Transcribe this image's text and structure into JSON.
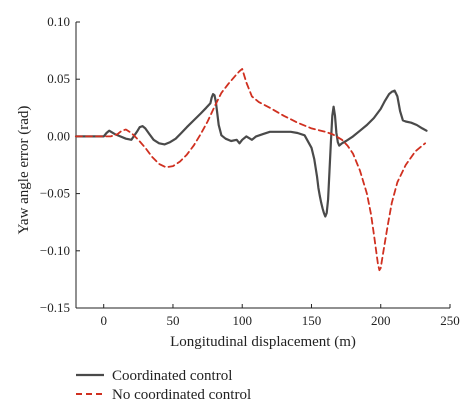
{
  "chart_data": {
    "type": "line",
    "title": "",
    "xlabel": "Longitudinal displacement (m)",
    "ylabel": "Yaw angle error (rad)",
    "xlim": [
      -20,
      250
    ],
    "ylim": [
      -0.15,
      0.1
    ],
    "xticks": [
      0,
      50,
      100,
      150,
      200,
      250
    ],
    "xtick_labels": [
      "0",
      "50",
      "100",
      "150",
      "200",
      "250"
    ],
    "yticks": [
      0.1,
      0.05,
      0.0,
      -0.05,
      -0.1,
      -0.15
    ],
    "ytick_labels": [
      "0.10",
      "0.05",
      "0.00",
      "−0.05",
      "−0.10",
      "−0.15"
    ],
    "grid": false,
    "legend_position": "bottom-left, below plot",
    "series": [
      {
        "name": "Coordinated control",
        "color": "#4a4a4a",
        "dash": "solid",
        "x": [
          -20,
          0,
          2,
          4,
          8,
          12,
          16,
          20,
          24,
          26,
          28,
          30,
          33,
          36,
          40,
          44,
          48,
          52,
          56,
          60,
          65,
          70,
          74,
          77,
          78,
          79,
          80,
          81,
          82,
          83,
          85,
          88,
          92,
          96,
          98,
          100,
          103,
          107,
          110,
          115,
          120,
          125,
          130,
          135,
          140,
          145,
          150,
          152,
          154,
          155,
          156,
          157,
          158,
          159,
          160,
          161,
          162,
          163,
          164,
          165,
          166,
          167,
          168,
          169,
          170,
          172,
          175,
          180,
          185,
          190,
          195,
          200,
          203,
          206,
          208,
          210,
          212,
          214,
          216,
          218,
          222,
          226,
          230,
          233
        ],
        "y": [
          0.0,
          0.0,
          0.003,
          0.005,
          0.002,
          0.0,
          -0.002,
          -0.003,
          0.004,
          0.008,
          0.009,
          0.007,
          0.002,
          -0.003,
          -0.006,
          -0.007,
          -0.005,
          -0.002,
          0.003,
          0.008,
          0.014,
          0.02,
          0.025,
          0.029,
          0.034,
          0.037,
          0.036,
          0.03,
          0.02,
          0.01,
          0.001,
          -0.002,
          -0.004,
          -0.003,
          -0.006,
          -0.003,
          0.0,
          -0.003,
          0.0,
          0.002,
          0.004,
          0.004,
          0.004,
          0.004,
          0.003,
          0.001,
          -0.01,
          -0.02,
          -0.035,
          -0.045,
          -0.052,
          -0.058,
          -0.063,
          -0.067,
          -0.07,
          -0.067,
          -0.055,
          -0.03,
          -0.005,
          0.018,
          0.026,
          0.018,
          0.003,
          -0.005,
          -0.008,
          -0.006,
          -0.004,
          0.0,
          0.005,
          0.01,
          0.016,
          0.024,
          0.031,
          0.037,
          0.039,
          0.04,
          0.035,
          0.022,
          0.014,
          0.013,
          0.012,
          0.01,
          0.007,
          0.005
        ]
      },
      {
        "name": "No coordinated control",
        "color": "#d03020",
        "dash": "dashed",
        "x": [
          -20,
          0,
          5,
          10,
          13,
          16,
          20,
          25,
          30,
          35,
          40,
          45,
          50,
          55,
          60,
          65,
          70,
          75,
          80,
          85,
          90,
          95,
          98,
          100,
          103,
          107,
          112,
          120,
          130,
          140,
          150,
          160,
          165,
          168,
          172,
          176,
          180,
          185,
          190,
          193,
          195,
          197,
          198,
          199,
          200,
          202,
          205,
          208,
          212,
          218,
          225,
          232
        ],
        "y": [
          0.0,
          0.0,
          0.0,
          0.002,
          0.005,
          0.006,
          0.003,
          -0.003,
          -0.01,
          -0.018,
          -0.024,
          -0.027,
          -0.026,
          -0.022,
          -0.016,
          -0.008,
          0.002,
          0.013,
          0.026,
          0.038,
          0.046,
          0.053,
          0.057,
          0.059,
          0.047,
          0.035,
          0.03,
          0.025,
          0.018,
          0.012,
          0.007,
          0.004,
          0.002,
          0.0,
          -0.003,
          -0.008,
          -0.015,
          -0.03,
          -0.05,
          -0.068,
          -0.085,
          -0.103,
          -0.112,
          -0.117,
          -0.115,
          -0.1,
          -0.078,
          -0.058,
          -0.04,
          -0.025,
          -0.013,
          -0.006
        ]
      }
    ]
  }
}
